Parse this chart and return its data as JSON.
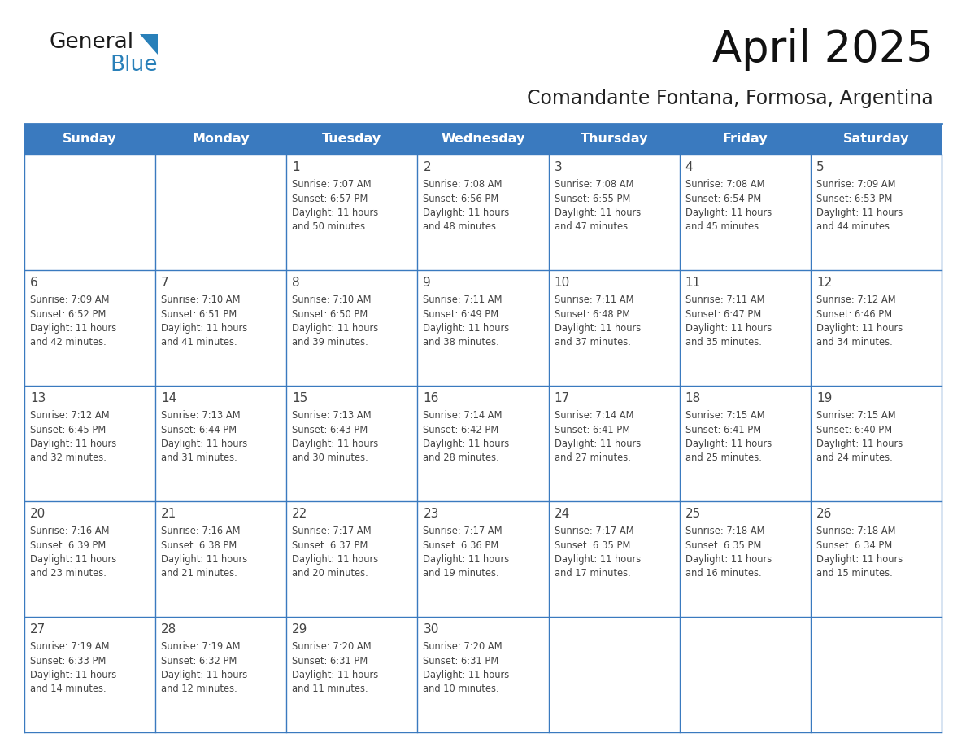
{
  "title": "April 2025",
  "subtitle": "Comandante Fontana, Formosa, Argentina",
  "header_bg_color": "#3a7abf",
  "header_text_color": "#ffffff",
  "cell_bg_color": "#ffffff",
  "cell_alt_bg_color": "#f2f2f2",
  "border_color": "#3a7abf",
  "text_color": "#444444",
  "days_of_week": [
    "Sunday",
    "Monday",
    "Tuesday",
    "Wednesday",
    "Thursday",
    "Friday",
    "Saturday"
  ],
  "logo_color_general": "#1a1a1a",
  "logo_color_blue": "#2980b9",
  "logo_triangle_color": "#2980b9",
  "calendar_data": [
    [
      {
        "day": "",
        "info": ""
      },
      {
        "day": "",
        "info": ""
      },
      {
        "day": "1",
        "info": "Sunrise: 7:07 AM\nSunset: 6:57 PM\nDaylight: 11 hours\nand 50 minutes."
      },
      {
        "day": "2",
        "info": "Sunrise: 7:08 AM\nSunset: 6:56 PM\nDaylight: 11 hours\nand 48 minutes."
      },
      {
        "day": "3",
        "info": "Sunrise: 7:08 AM\nSunset: 6:55 PM\nDaylight: 11 hours\nand 47 minutes."
      },
      {
        "day": "4",
        "info": "Sunrise: 7:08 AM\nSunset: 6:54 PM\nDaylight: 11 hours\nand 45 minutes."
      },
      {
        "day": "5",
        "info": "Sunrise: 7:09 AM\nSunset: 6:53 PM\nDaylight: 11 hours\nand 44 minutes."
      }
    ],
    [
      {
        "day": "6",
        "info": "Sunrise: 7:09 AM\nSunset: 6:52 PM\nDaylight: 11 hours\nand 42 minutes."
      },
      {
        "day": "7",
        "info": "Sunrise: 7:10 AM\nSunset: 6:51 PM\nDaylight: 11 hours\nand 41 minutes."
      },
      {
        "day": "8",
        "info": "Sunrise: 7:10 AM\nSunset: 6:50 PM\nDaylight: 11 hours\nand 39 minutes."
      },
      {
        "day": "9",
        "info": "Sunrise: 7:11 AM\nSunset: 6:49 PM\nDaylight: 11 hours\nand 38 minutes."
      },
      {
        "day": "10",
        "info": "Sunrise: 7:11 AM\nSunset: 6:48 PM\nDaylight: 11 hours\nand 37 minutes."
      },
      {
        "day": "11",
        "info": "Sunrise: 7:11 AM\nSunset: 6:47 PM\nDaylight: 11 hours\nand 35 minutes."
      },
      {
        "day": "12",
        "info": "Sunrise: 7:12 AM\nSunset: 6:46 PM\nDaylight: 11 hours\nand 34 minutes."
      }
    ],
    [
      {
        "day": "13",
        "info": "Sunrise: 7:12 AM\nSunset: 6:45 PM\nDaylight: 11 hours\nand 32 minutes."
      },
      {
        "day": "14",
        "info": "Sunrise: 7:13 AM\nSunset: 6:44 PM\nDaylight: 11 hours\nand 31 minutes."
      },
      {
        "day": "15",
        "info": "Sunrise: 7:13 AM\nSunset: 6:43 PM\nDaylight: 11 hours\nand 30 minutes."
      },
      {
        "day": "16",
        "info": "Sunrise: 7:14 AM\nSunset: 6:42 PM\nDaylight: 11 hours\nand 28 minutes."
      },
      {
        "day": "17",
        "info": "Sunrise: 7:14 AM\nSunset: 6:41 PM\nDaylight: 11 hours\nand 27 minutes."
      },
      {
        "day": "18",
        "info": "Sunrise: 7:15 AM\nSunset: 6:41 PM\nDaylight: 11 hours\nand 25 minutes."
      },
      {
        "day": "19",
        "info": "Sunrise: 7:15 AM\nSunset: 6:40 PM\nDaylight: 11 hours\nand 24 minutes."
      }
    ],
    [
      {
        "day": "20",
        "info": "Sunrise: 7:16 AM\nSunset: 6:39 PM\nDaylight: 11 hours\nand 23 minutes."
      },
      {
        "day": "21",
        "info": "Sunrise: 7:16 AM\nSunset: 6:38 PM\nDaylight: 11 hours\nand 21 minutes."
      },
      {
        "day": "22",
        "info": "Sunrise: 7:17 AM\nSunset: 6:37 PM\nDaylight: 11 hours\nand 20 minutes."
      },
      {
        "day": "23",
        "info": "Sunrise: 7:17 AM\nSunset: 6:36 PM\nDaylight: 11 hours\nand 19 minutes."
      },
      {
        "day": "24",
        "info": "Sunrise: 7:17 AM\nSunset: 6:35 PM\nDaylight: 11 hours\nand 17 minutes."
      },
      {
        "day": "25",
        "info": "Sunrise: 7:18 AM\nSunset: 6:35 PM\nDaylight: 11 hours\nand 16 minutes."
      },
      {
        "day": "26",
        "info": "Sunrise: 7:18 AM\nSunset: 6:34 PM\nDaylight: 11 hours\nand 15 minutes."
      }
    ],
    [
      {
        "day": "27",
        "info": "Sunrise: 7:19 AM\nSunset: 6:33 PM\nDaylight: 11 hours\nand 14 minutes."
      },
      {
        "day": "28",
        "info": "Sunrise: 7:19 AM\nSunset: 6:32 PM\nDaylight: 11 hours\nand 12 minutes."
      },
      {
        "day": "29",
        "info": "Sunrise: 7:20 AM\nSunset: 6:31 PM\nDaylight: 11 hours\nand 11 minutes."
      },
      {
        "day": "30",
        "info": "Sunrise: 7:20 AM\nSunset: 6:31 PM\nDaylight: 11 hours\nand 10 minutes."
      },
      {
        "day": "",
        "info": ""
      },
      {
        "day": "",
        "info": ""
      },
      {
        "day": "",
        "info": ""
      }
    ]
  ]
}
